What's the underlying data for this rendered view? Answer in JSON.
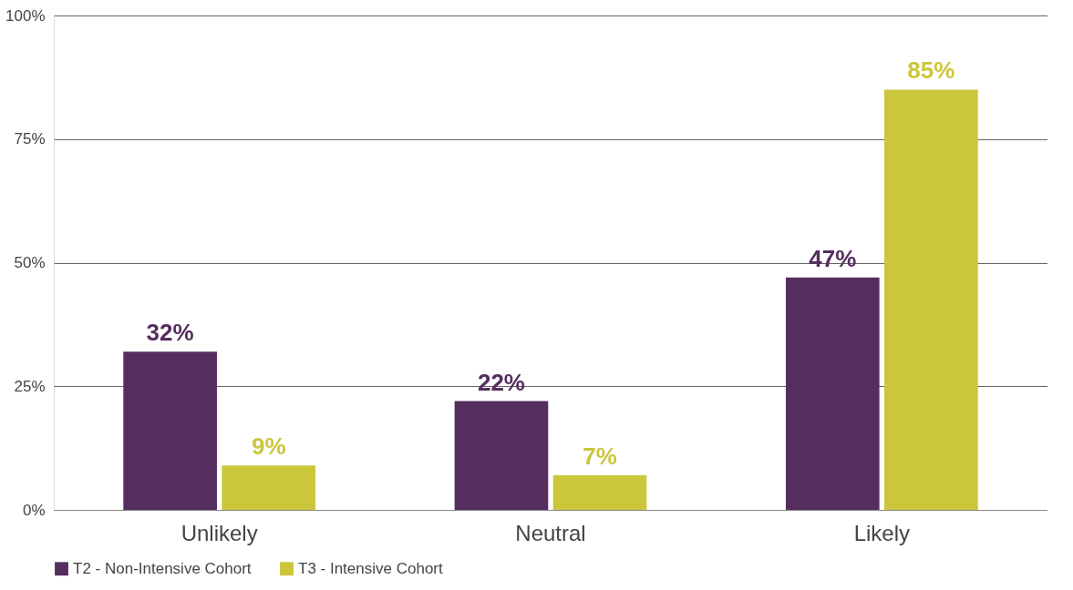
{
  "chart_data": {
    "type": "bar",
    "categories": [
      "Unlikely",
      "Neutral",
      "Likely"
    ],
    "series": [
      {
        "name": "T2 - Non-Intensive Cohort",
        "color": "#552e5f",
        "values": [
          32,
          22,
          47
        ],
        "value_labels": [
          "32%",
          "22%",
          "47%"
        ]
      },
      {
        "name": "T3 - Intensive Cohort",
        "color": "#cbc63b",
        "values": [
          9,
          7,
          85
        ],
        "value_labels": [
          "9%",
          "7%",
          "85%"
        ]
      }
    ],
    "ylim": [
      0,
      100
    ],
    "yticks": [
      {
        "value": 0,
        "label": "0%"
      },
      {
        "value": 25,
        "label": "25%"
      },
      {
        "value": 50,
        "label": "50%"
      },
      {
        "value": 75,
        "label": "75%"
      },
      {
        "value": 100,
        "label": "100%"
      }
    ],
    "grid": "y",
    "legend": "bottom"
  }
}
